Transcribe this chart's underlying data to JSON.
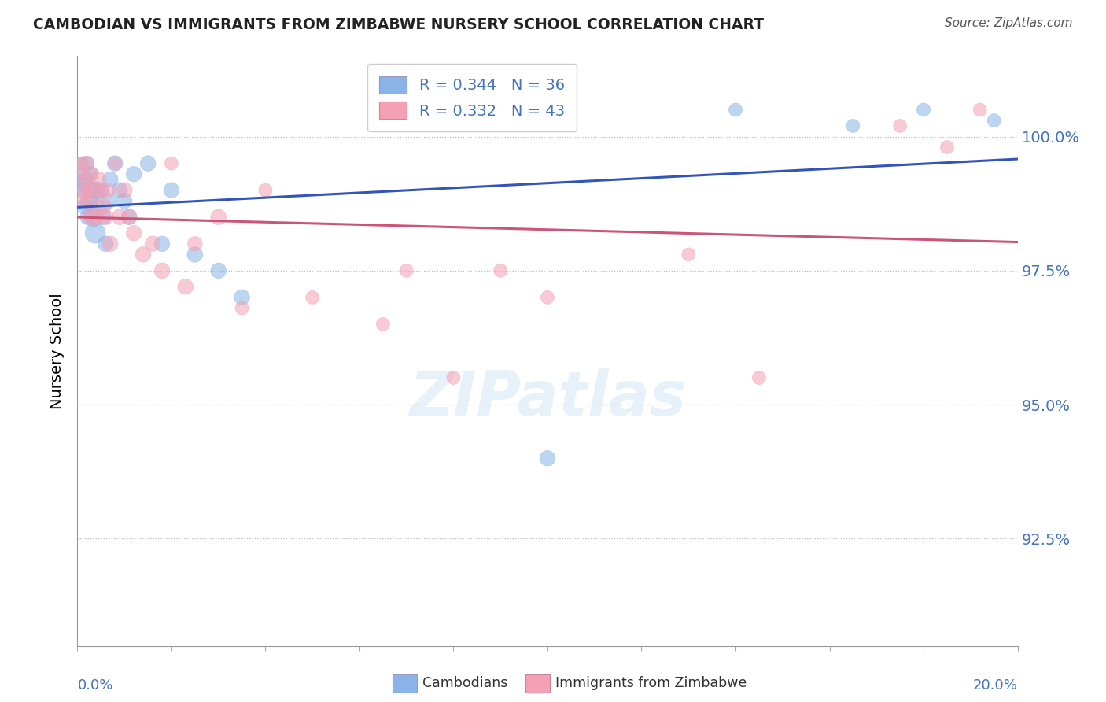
{
  "title": "CAMBODIAN VS IMMIGRANTS FROM ZIMBABWE NURSERY SCHOOL CORRELATION CHART",
  "source": "Source: ZipAtlas.com",
  "ylabel": "Nursery School",
  "legend_entry1_r": "0.344",
  "legend_entry1_n": "36",
  "legend_entry2_r": "0.332",
  "legend_entry2_n": "43",
  "legend_label1": "Cambodians",
  "legend_label2": "Immigrants from Zimbabwe",
  "xlim": [
    0.0,
    20.0
  ],
  "ylim": [
    90.5,
    101.5
  ],
  "yticks": [
    92.5,
    95.0,
    97.5,
    100.0
  ],
  "ytick_labels": [
    "92.5%",
    "95.0%",
    "97.5%",
    "100.0%"
  ],
  "color_blue": "#8AB4E8",
  "color_pink": "#F4A0B5",
  "color_blue_line": "#3355BB",
  "color_pink_line": "#CC5577",
  "color_axis_blue": "#4472C4",
  "watermark_color": "#D0E4F5",
  "cam_x": [
    0.05,
    0.08,
    0.1,
    0.12,
    0.15,
    0.18,
    0.2,
    0.22,
    0.25,
    0.28,
    0.3,
    0.35,
    0.38,
    0.4,
    0.42,
    0.5,
    0.55,
    0.6,
    0.65,
    0.7,
    0.8,
    0.9,
    1.0,
    1.1,
    1.2,
    1.5,
    1.8,
    2.0,
    2.5,
    3.0,
    3.5,
    10.0,
    14.0,
    16.5,
    18.0,
    19.5
  ],
  "cam_y": [
    99.1,
    99.3,
    99.5,
    99.0,
    98.7,
    99.2,
    99.5,
    98.5,
    98.8,
    99.3,
    99.0,
    98.5,
    98.2,
    99.0,
    98.7,
    99.0,
    98.5,
    98.0,
    98.8,
    99.2,
    99.5,
    99.0,
    98.8,
    98.5,
    99.3,
    99.5,
    98.0,
    99.0,
    97.8,
    97.5,
    97.0,
    94.0,
    100.5,
    100.2,
    100.5,
    100.3
  ],
  "cam_size": [
    200,
    150,
    150,
    200,
    200,
    200,
    180,
    200,
    250,
    200,
    250,
    300,
    350,
    250,
    200,
    200,
    200,
    200,
    200,
    200,
    200,
    200,
    200,
    200,
    200,
    200,
    200,
    200,
    200,
    200,
    200,
    200,
    150,
    150,
    150,
    150
  ],
  "zim_x": [
    0.05,
    0.08,
    0.12,
    0.15,
    0.18,
    0.2,
    0.22,
    0.25,
    0.28,
    0.3,
    0.35,
    0.4,
    0.45,
    0.5,
    0.55,
    0.6,
    0.65,
    0.7,
    0.8,
    0.9,
    1.0,
    1.1,
    1.2,
    1.4,
    1.6,
    1.8,
    2.0,
    2.3,
    2.5,
    3.0,
    3.5,
    4.0,
    5.0,
    6.5,
    7.0,
    8.0,
    9.0,
    10.0,
    13.0,
    14.5,
    17.5,
    18.5,
    19.2
  ],
  "zim_y": [
    99.3,
    99.5,
    98.8,
    99.0,
    99.2,
    99.5,
    99.0,
    98.8,
    99.3,
    98.5,
    99.0,
    98.5,
    99.2,
    99.0,
    98.7,
    98.5,
    99.0,
    98.0,
    99.5,
    98.5,
    99.0,
    98.5,
    98.2,
    97.8,
    98.0,
    97.5,
    99.5,
    97.2,
    98.0,
    98.5,
    96.8,
    99.0,
    97.0,
    96.5,
    97.5,
    95.5,
    97.5,
    97.0,
    97.8,
    95.5,
    100.2,
    99.8,
    100.5
  ],
  "zim_size": [
    150,
    150,
    150,
    180,
    150,
    180,
    150,
    200,
    200,
    250,
    200,
    200,
    200,
    180,
    200,
    200,
    180,
    200,
    150,
    200,
    200,
    200,
    200,
    200,
    200,
    200,
    150,
    200,
    180,
    200,
    150,
    150,
    150,
    150,
    150,
    150,
    150,
    150,
    150,
    150,
    150,
    150,
    150
  ]
}
